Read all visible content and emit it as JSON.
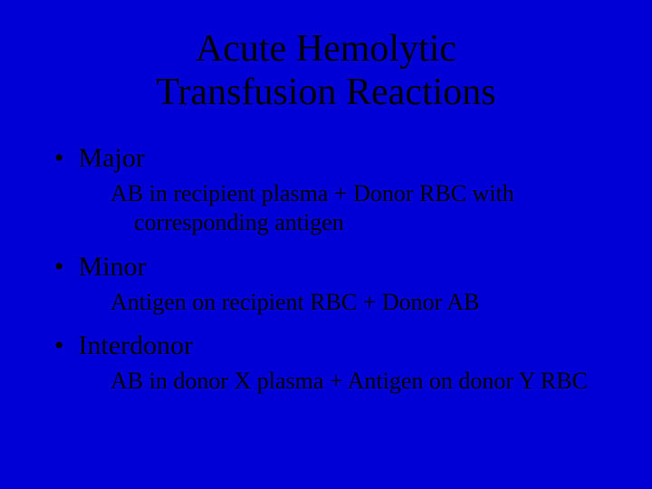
{
  "slide": {
    "background_color": "#0000d6",
    "text_color": "#000000",
    "title_line1": "Acute Hemolytic",
    "title_line2": "Transfusion Reactions",
    "title_fontsize": 42,
    "bullet_fontsize": 30,
    "sub_fontsize": 26,
    "items": [
      {
        "bullet_label": "Major",
        "sub_text": "AB in recipient plasma + Donor RBC with corresponding antigen"
      },
      {
        "bullet_label": "Minor",
        "sub_text": "Antigen on recipient RBC + Donor AB"
      },
      {
        "bullet_label": "Interdonor",
        "sub_text": "AB in donor X plasma + Antigen on donor Y RBC"
      }
    ]
  }
}
